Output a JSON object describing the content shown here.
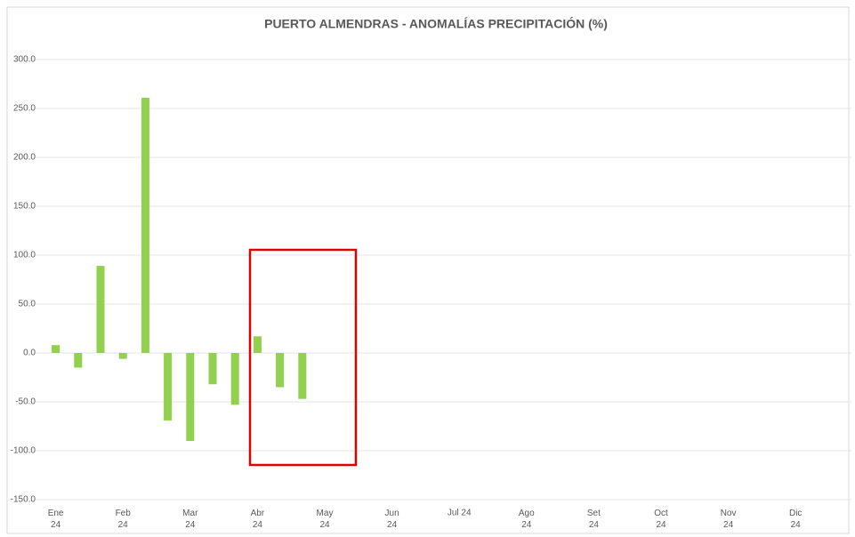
{
  "chart_data": {
    "type": "bar",
    "title": "PUERTO ALMENDRAS - ANOMALÍAS PRECIPITACIÓN (%)",
    "categories": [
      "Ene\n24",
      null,
      null,
      "Feb\n24",
      null,
      null,
      "Mar\n24",
      null,
      null,
      "Abr\n24",
      null,
      null,
      "May\n24",
      null,
      null,
      "Jun\n24",
      null,
      null,
      "Jul 24",
      null,
      null,
      "Ago\n24",
      null,
      null,
      "Set\n24",
      null,
      null,
      "Oct\n24",
      null,
      null,
      "Nov\n24",
      null,
      null,
      "Dic\n24",
      null,
      null
    ],
    "values": [
      8,
      -15,
      89,
      -6,
      261,
      -69,
      -90,
      -32,
      -53,
      17,
      -35,
      -47,
      null,
      null,
      null,
      null,
      null,
      null,
      null,
      null,
      null,
      null,
      null,
      null,
      null,
      null,
      null,
      null,
      null,
      null,
      null,
      null,
      null,
      null,
      null,
      null
    ],
    "color": "#92d050",
    "ylim": [
      -150,
      300
    ],
    "yticks": [
      {
        "value": -150,
        "label": "-150.0"
      },
      {
        "value": -100,
        "label": "-100.0"
      },
      {
        "value": -50,
        "label": "-50.0"
      },
      {
        "value": 0,
        "label": "0.0"
      },
      {
        "value": 50,
        "label": "50.0"
      },
      {
        "value": 100,
        "label": "100.0"
      },
      {
        "value": 150,
        "label": "150.0"
      },
      {
        "value": 200,
        "label": "200.0"
      },
      {
        "value": 250,
        "label": "250.0"
      },
      {
        "value": 300,
        "label": "300.0"
      }
    ],
    "grid": true
  }
}
